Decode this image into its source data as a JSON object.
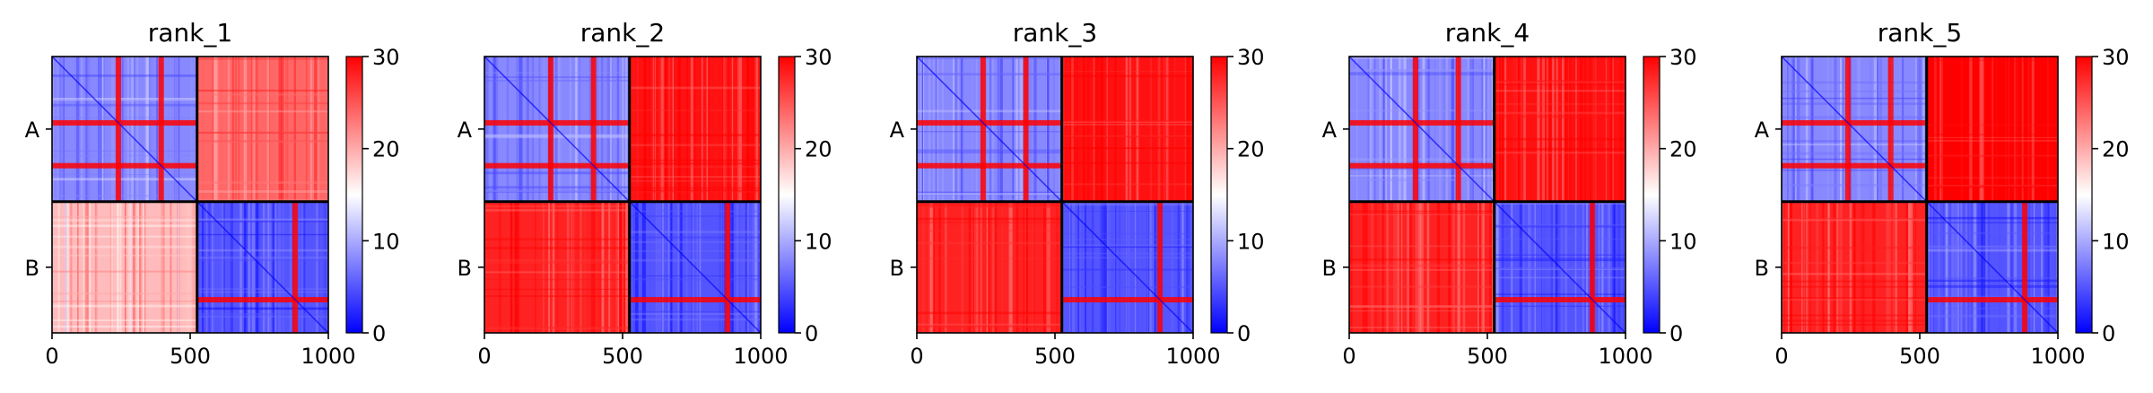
{
  "chart_data": [
    {
      "type": "heatmap",
      "title": "rank_1",
      "xlabel": "",
      "ylabel": "",
      "xlim": [
        0,
        1000
      ],
      "xticks": [
        "0",
        "500",
        "1000"
      ],
      "chain_labels": [
        "A",
        "B"
      ],
      "chain_boundary": 525,
      "colorbar": {
        "range": [
          0,
          30
        ],
        "ticks": [
          "0",
          "10",
          "20",
          "30"
        ],
        "colors": [
          "#0000ff",
          "#ffffff",
          "#ff0000"
        ]
      },
      "block_values": [
        [
          8,
          24
        ],
        [
          19,
          5
        ]
      ],
      "grid": false
    },
    {
      "type": "heatmap",
      "title": "rank_2",
      "xlabel": "",
      "ylabel": "",
      "xlim": [
        0,
        1000
      ],
      "xticks": [
        "0",
        "500",
        "1000"
      ],
      "chain_labels": [
        "A",
        "B"
      ],
      "chain_boundary": 525,
      "colorbar": {
        "range": [
          0,
          30
        ],
        "ticks": [
          "0",
          "10",
          "20",
          "30"
        ],
        "colors": [
          "#0000ff",
          "#ffffff",
          "#ff0000"
        ]
      },
      "block_values": [
        [
          8,
          29
        ],
        [
          28,
          5
        ]
      ],
      "grid": false
    },
    {
      "type": "heatmap",
      "title": "rank_3",
      "xlabel": "",
      "ylabel": "",
      "xlim": [
        0,
        1000
      ],
      "xticks": [
        "0",
        "500",
        "1000"
      ],
      "chain_labels": [
        "A",
        "B"
      ],
      "chain_boundary": 525,
      "colorbar": {
        "range": [
          0,
          30
        ],
        "ticks": [
          "0",
          "10",
          "20",
          "30"
        ],
        "colors": [
          "#0000ff",
          "#ffffff",
          "#ff0000"
        ]
      },
      "block_values": [
        [
          8,
          29
        ],
        [
          28,
          5
        ]
      ],
      "grid": false
    },
    {
      "type": "heatmap",
      "title": "rank_4",
      "xlabel": "",
      "ylabel": "",
      "xlim": [
        0,
        1000
      ],
      "xticks": [
        "0",
        "500",
        "1000"
      ],
      "chain_labels": [
        "A",
        "B"
      ],
      "chain_boundary": 525,
      "colorbar": {
        "range": [
          0,
          30
        ],
        "ticks": [
          "0",
          "10",
          "20",
          "30"
        ],
        "colors": [
          "#0000ff",
          "#ffffff",
          "#ff0000"
        ]
      },
      "block_values": [
        [
          8,
          29
        ],
        [
          28,
          5
        ]
      ],
      "grid": false
    },
    {
      "type": "heatmap",
      "title": "rank_5",
      "xlabel": "",
      "ylabel": "",
      "xlim": [
        0,
        1000
      ],
      "xticks": [
        "0",
        "500",
        "1000"
      ],
      "chain_labels": [
        "A",
        "B"
      ],
      "chain_boundary": 525,
      "colorbar": {
        "range": [
          0,
          30
        ],
        "ticks": [
          "0",
          "10",
          "20",
          "30"
        ],
        "colors": [
          "#0000ff",
          "#ffffff",
          "#ff0000"
        ]
      },
      "block_values": [
        [
          8,
          30
        ],
        [
          28,
          5
        ]
      ],
      "grid": false
    }
  ]
}
